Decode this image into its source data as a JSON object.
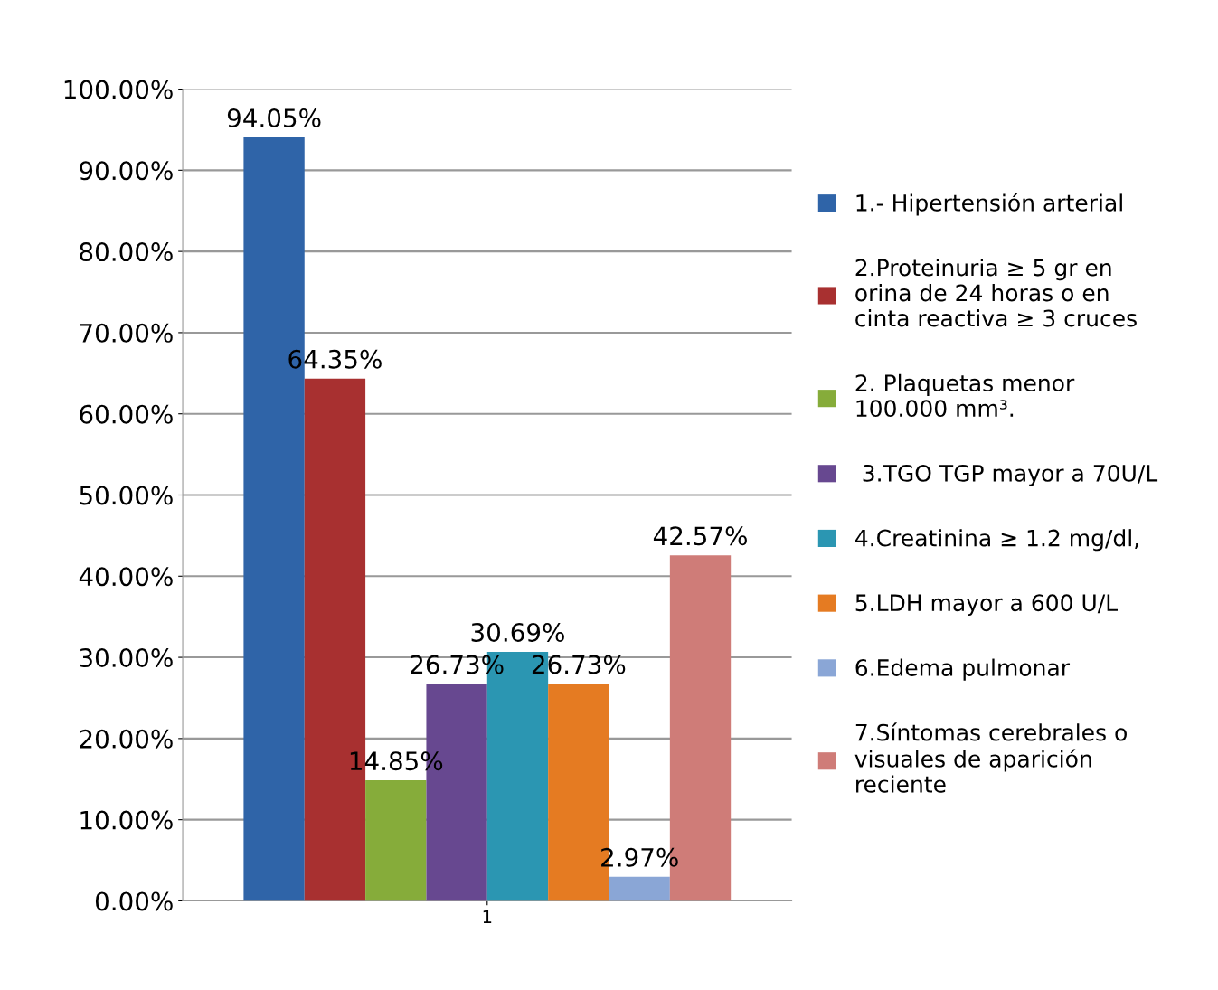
{
  "chart_data": {
    "type": "bar",
    "categories": [
      "1"
    ],
    "series": [
      {
        "name": "1.- Hipertensión arterial",
        "color": "#2f64a8",
        "values": [
          94.05
        ],
        "value_labels": [
          "94.05%"
        ]
      },
      {
        "name": "2.Proteinuria ≥ 5 gr en\norina de 24 horas o en\ncinta reactiva ≥ 3 cruces",
        "color": "#a83030",
        "values": [
          64.35
        ],
        "value_labels": [
          "64.35%"
        ]
      },
      {
        "name": "2. Plaquetas menor\n100.000 mm³.",
        "color": "#86ac3a",
        "values": [
          14.85
        ],
        "value_labels": [
          "14.85%"
        ]
      },
      {
        "name": " 3.TGO TGP mayor a 70U/L",
        "color": "#674890",
        "values": [
          26.73
        ],
        "value_labels": [
          "26.73%"
        ]
      },
      {
        "name": "4.Creatinina ≥ 1.2 mg/dl,",
        "color": "#2b96b2",
        "values": [
          30.69
        ],
        "value_labels": [
          "30.69%"
        ]
      },
      {
        "name": "5.LDH mayor a 600 U/L",
        "color": "#e57b22",
        "values": [
          26.73
        ],
        "value_labels": [
          "26.73%"
        ]
      },
      {
        "name": "6.Edema pulmonar",
        "color": "#8aa6d6",
        "values": [
          2.97
        ],
        "value_labels": [
          "2.97%"
        ]
      },
      {
        "name": "7.Síntomas cerebrales o\nvisuales de aparición\nreciente",
        "color": "#cf7c78",
        "values": [
          42.57
        ],
        "value_labels": [
          "42.57%"
        ]
      }
    ],
    "ylim": [
      0,
      100
    ],
    "yticks": [
      {
        "value": 0,
        "label": "0.00%"
      },
      {
        "value": 10,
        "label": "10.00%"
      },
      {
        "value": 20,
        "label": "20.00%"
      },
      {
        "value": 30,
        "label": "30.00%"
      },
      {
        "value": 40,
        "label": "40.00%"
      },
      {
        "value": 50,
        "label": "50.00%"
      },
      {
        "value": 60,
        "label": "60.00%"
      },
      {
        "value": 70,
        "label": "70.00%"
      },
      {
        "value": 80,
        "label": "80.00%"
      },
      {
        "value": 90,
        "label": "90.00%"
      },
      {
        "value": 100,
        "label": "100.00%"
      }
    ],
    "grid": "y",
    "legend": "right"
  }
}
